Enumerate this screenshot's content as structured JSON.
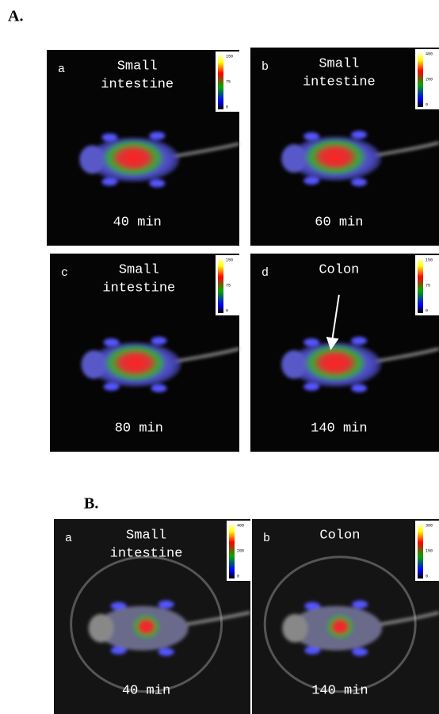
{
  "sections": [
    {
      "label": "A.",
      "panels": [
        {
          "letter": "a",
          "label_lines": [
            "Small",
            "intestine"
          ],
          "time": "40 min",
          "scale": [
            "150",
            "75",
            "0"
          ]
        },
        {
          "letter": "b",
          "label_lines": [
            "Small",
            "intestine"
          ],
          "time": "60 min",
          "scale": [
            "400",
            "200",
            "0"
          ]
        },
        {
          "letter": "c",
          "label_lines": [
            "Small",
            "intestine"
          ],
          "time": "80 min",
          "scale": [
            "150",
            "75",
            "0"
          ]
        },
        {
          "letter": "d",
          "label_lines": [
            "Colon"
          ],
          "time": "140 min",
          "scale": [
            "150",
            "75",
            "0"
          ]
        }
      ]
    },
    {
      "label": "B.",
      "panels": [
        {
          "letter": "a",
          "label_lines": [
            "Small",
            "intestine"
          ],
          "time": "40 min",
          "scale": [
            "400",
            "200",
            "0"
          ]
        },
        {
          "letter": "b",
          "label_lines": [
            "Colon"
          ],
          "time": "140 min",
          "scale": [
            "300",
            "150",
            "0"
          ]
        }
      ]
    }
  ]
}
